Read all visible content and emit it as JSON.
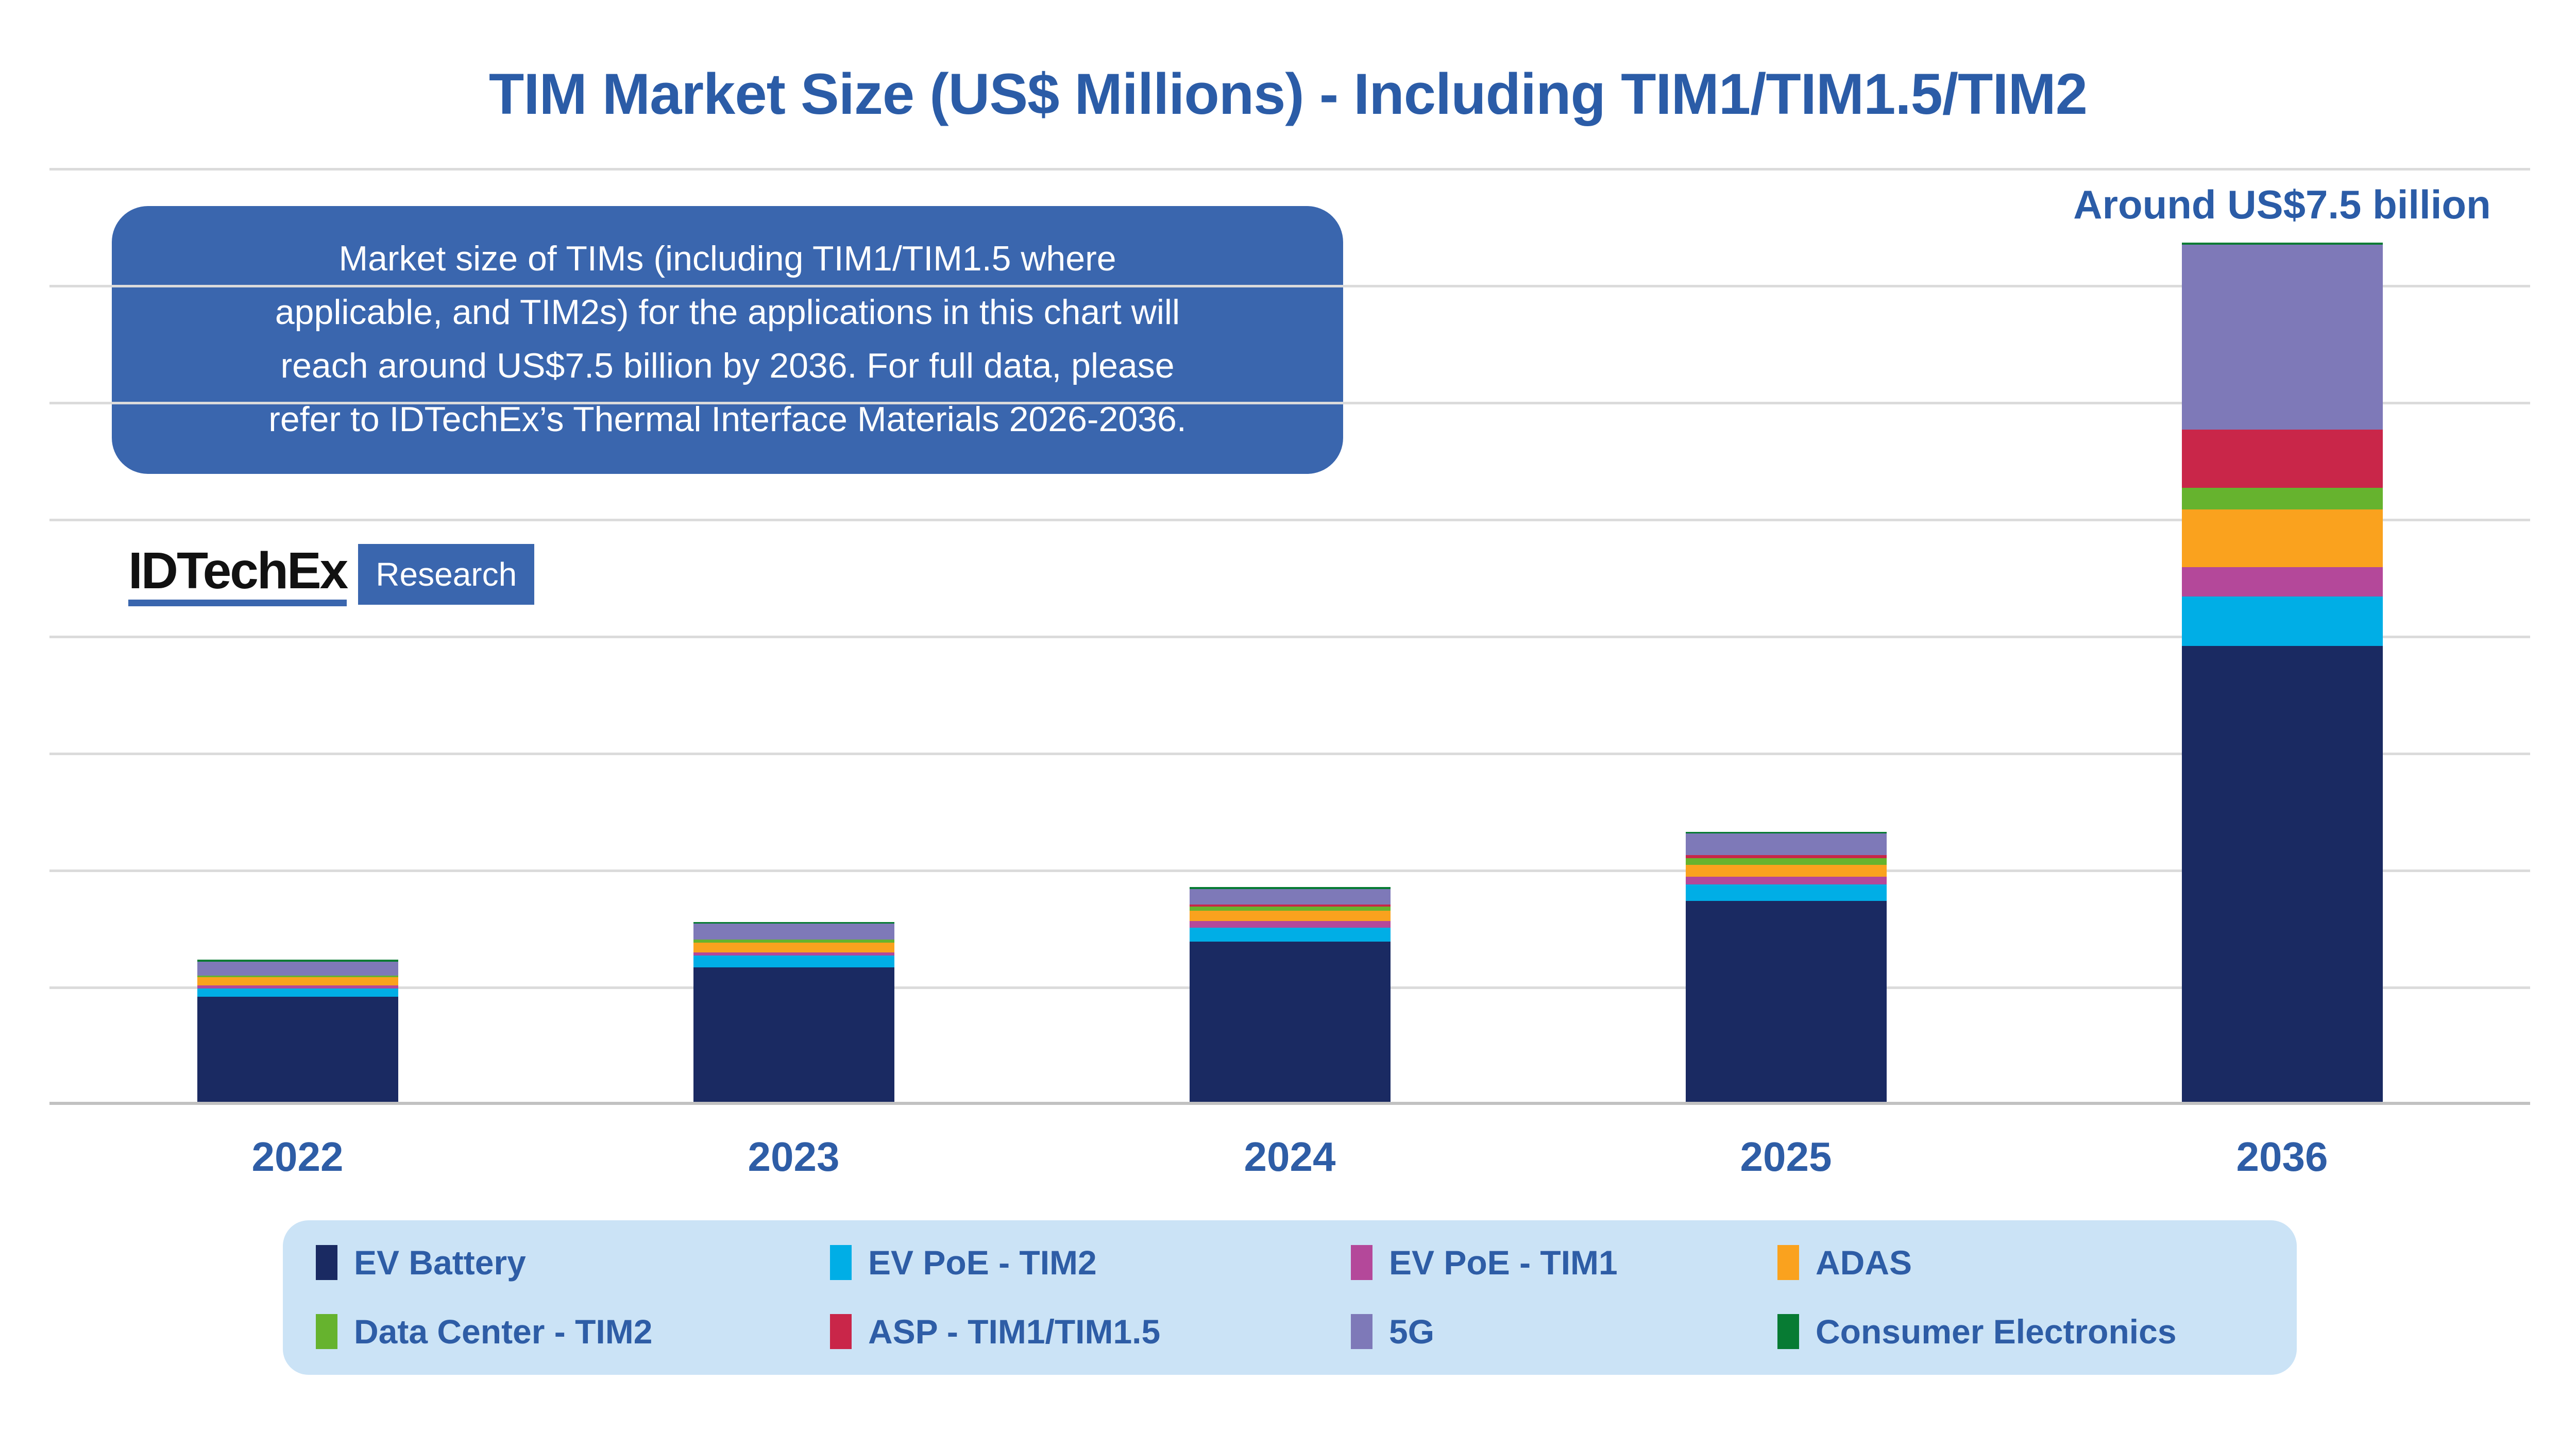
{
  "page": {
    "title": "TIM Market Size (US$ Millions) - Including TIM1/TIM1.5/TIM2"
  },
  "callout": {
    "text": "Around US$7.5 billion"
  },
  "annotation": {
    "lines": [
      "Market size of TIMs (including TIM1/TIM1.5 where",
      "applicable, and TIM2s) for the applications in this chart will",
      "reach around US$7.5 billion by 2036. For full data, please",
      "refer to IDTechEx’s Thermal Interface Materials 2026-2036."
    ]
  },
  "logo": {
    "brand": "IDTechEx",
    "label": "Research"
  },
  "colors": {
    "title_text": "#2B5CA7",
    "axis_text": "#2E5DA6",
    "annotation_bg": "#3A66AE",
    "annotation_text": "#FFFFFF",
    "legend_bg": "#CBE3F6",
    "legend_text": "#2E5DA6",
    "gridline": "#DBDBDB",
    "axis_line": "#C1C1C1",
    "logo_accent": "#3A66AE",
    "background": "#FFFFFF"
  },
  "chart_data": {
    "type": "bar",
    "stacked": true,
    "title": "TIM Market Size (US$ Millions) - Including TIM1/TIM1.5/TIM2",
    "xlabel": "",
    "ylabel": "",
    "units": "US$ Millions",
    "categories": [
      "2022",
      "2023",
      "2024",
      "2025",
      "2036"
    ],
    "series": [
      {
        "name": "EV Battery",
        "color": "#1A2A62",
        "values": [
          900,
          1150,
          1370,
          1720,
          3900
        ]
      },
      {
        "name": "EV PoE - TIM2",
        "color": "#00AEE6",
        "values": [
          70,
          100,
          120,
          140,
          420
        ]
      },
      {
        "name": "EV PoE - TIM1",
        "color": "#B4489A",
        "values": [
          25,
          30,
          55,
          65,
          255
        ]
      },
      {
        "name": "ADAS",
        "color": "#FAA21E",
        "values": [
          70,
          80,
          90,
          100,
          490
        ]
      },
      {
        "name": "Data Center - TIM2",
        "color": "#66B32E",
        "values": [
          15,
          30,
          35,
          60,
          185
        ]
      },
      {
        "name": "ASP - TIM1/TIM1.5",
        "color": "#C92649",
        "values": [
          0,
          0,
          20,
          25,
          500
        ]
      },
      {
        "name": "5G",
        "color": "#7E79B8",
        "values": [
          120,
          135,
          130,
          185,
          1580
        ]
      },
      {
        "name": "Consumer Electronics",
        "color": "#077B33",
        "values": [
          15,
          15,
          20,
          15,
          20
        ]
      }
    ],
    "totals_estimated": [
      1215,
      1540,
      1840,
      2310,
      7350
    ],
    "ylim": [
      0,
      8000
    ],
    "gridline_interval": 1000,
    "grid": true,
    "y_axis_labels_shown": false,
    "legend_position": "bottom",
    "annotations": [
      "Around US$7.5 billion"
    ]
  },
  "legend": {
    "items": [
      {
        "label": "EV Battery",
        "color": "#1A2A62"
      },
      {
        "label": "EV PoE - TIM2",
        "color": "#00AEE6"
      },
      {
        "label": "EV PoE - TIM1",
        "color": "#B4489A"
      },
      {
        "label": "ADAS",
        "color": "#FAA21E"
      },
      {
        "label": "Data Center - TIM2",
        "color": "#66B32E"
      },
      {
        "label": "ASP - TIM1/TIM1.5",
        "color": "#C92649"
      },
      {
        "label": "5G",
        "color": "#7E79B8"
      },
      {
        "label": "Consumer Electronics",
        "color": "#077B33"
      }
    ]
  }
}
